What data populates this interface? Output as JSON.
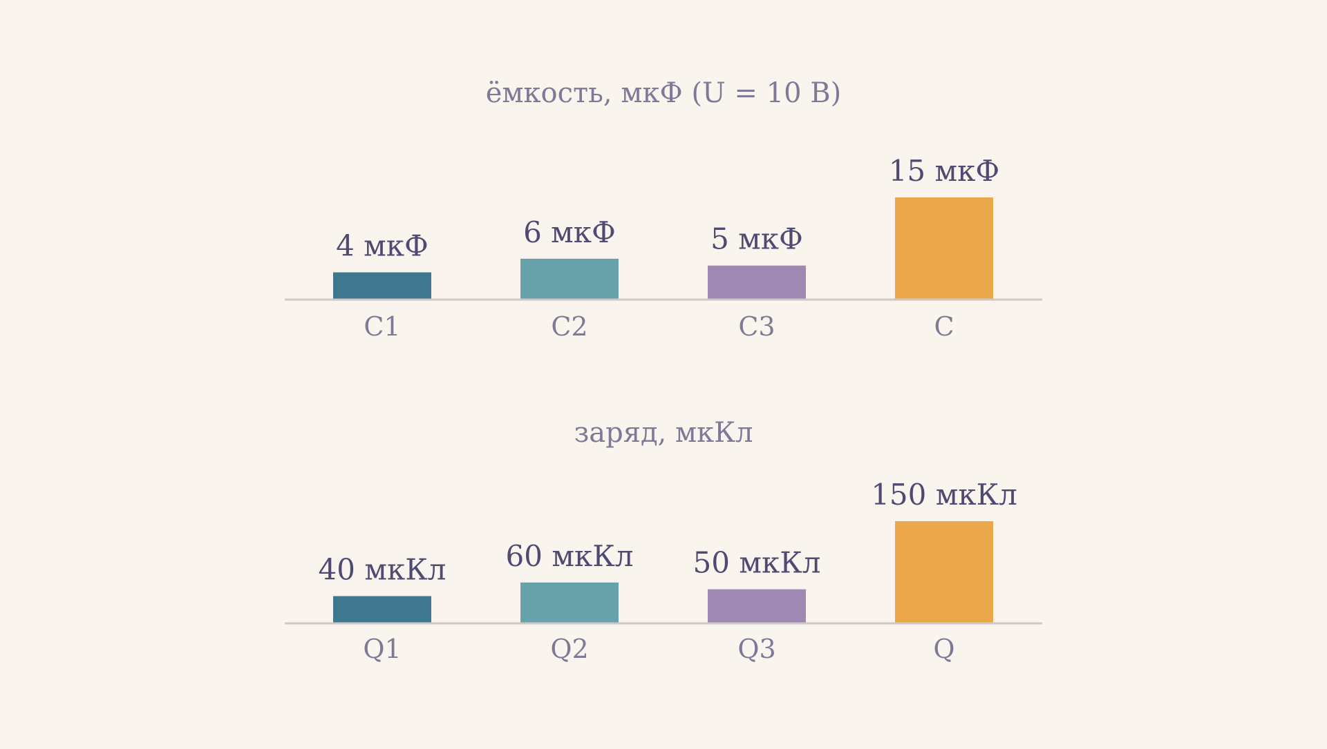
{
  "chart_data": [
    {
      "type": "bar",
      "title": "ёмкость, мкФ (U = 10 В)",
      "categories": [
        "C1",
        "C2",
        "C3",
        "C"
      ],
      "values": [
        4,
        6,
        5,
        15
      ],
      "value_labels": [
        "4 мкФ",
        "6 мкФ",
        "5 мкФ",
        "15 мкФ"
      ],
      "colors": [
        "#3f788e",
        "#69a1aa",
        "#9f89b3",
        "#eba84b"
      ],
      "ylim": [
        0,
        15
      ],
      "xlabel": "",
      "ylabel": "",
      "grid": false
    },
    {
      "type": "bar",
      "title": "заряд, мкКл",
      "categories": [
        "Q1",
        "Q2",
        "Q3",
        "Q"
      ],
      "values": [
        40,
        60,
        50,
        150
      ],
      "value_labels": [
        "40 мкКл",
        "60 мкКл",
        "50 мкКл",
        "150 мкКл"
      ],
      "colors": [
        "#3f788e",
        "#69a1aa",
        "#9f89b3",
        "#eba84b"
      ],
      "ylim": [
        0,
        150
      ],
      "xlabel": "",
      "ylabel": "",
      "grid": false
    }
  ]
}
